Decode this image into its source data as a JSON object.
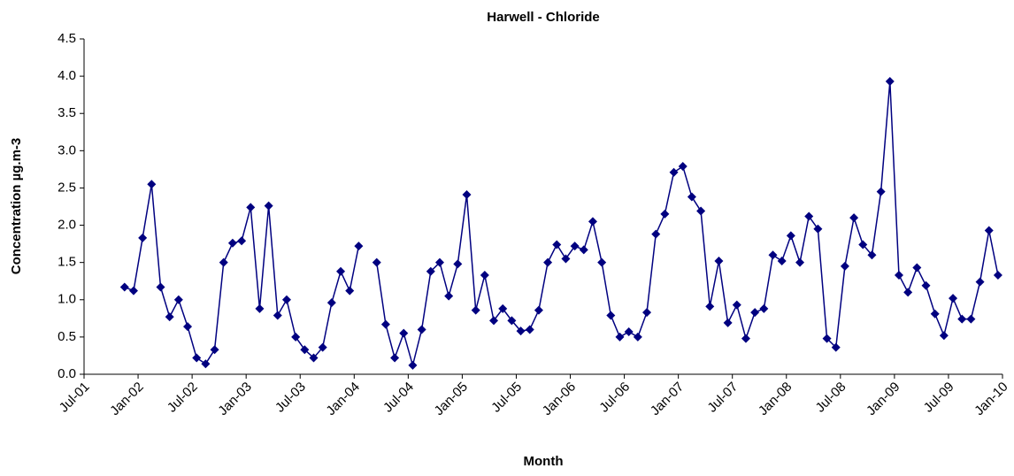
{
  "chart_data": {
    "type": "line",
    "title": "Harwell - Chloride",
    "x_label": "Month",
    "y_label": "Concentration µg.m-3",
    "x": [
      "2001-11",
      "2001-12",
      "2002-01",
      "2002-02",
      "2002-03",
      "2002-04",
      "2002-05",
      "2002-06",
      "2002-07",
      "2002-08",
      "2002-09",
      "2002-10",
      "2002-11",
      "2002-12",
      "2003-01",
      "2003-02",
      "2003-03",
      "2003-04",
      "2003-05",
      "2003-06",
      "2003-07",
      "2003-08",
      "2003-09",
      "2003-10",
      "2003-11",
      "2003-12",
      "2004-01",
      "2004-02",
      "2004-03",
      "2004-04",
      "2004-05",
      "2004-06",
      "2004-07",
      "2004-08",
      "2004-09",
      "2004-10",
      "2004-11",
      "2004-12",
      "2005-01",
      "2005-02",
      "2005-03",
      "2005-04",
      "2005-05",
      "2005-06",
      "2005-07",
      "2005-08",
      "2005-09",
      "2005-10",
      "2005-11",
      "2005-12",
      "2006-01",
      "2006-02",
      "2006-03",
      "2006-04",
      "2006-05",
      "2006-06",
      "2006-07",
      "2006-08",
      "2006-09",
      "2006-10",
      "2006-11",
      "2006-12",
      "2007-01",
      "2007-02",
      "2007-03",
      "2007-04",
      "2007-05",
      "2007-06",
      "2007-07",
      "2007-08",
      "2007-09",
      "2007-10",
      "2007-11",
      "2007-12",
      "2008-01",
      "2008-02",
      "2008-03",
      "2008-04",
      "2008-05",
      "2008-06",
      "2008-07",
      "2008-08",
      "2008-09",
      "2008-10",
      "2008-11",
      "2008-12",
      "2009-01",
      "2009-02",
      "2009-03",
      "2009-04",
      "2009-05",
      "2009-06",
      "2009-07",
      "2009-08",
      "2009-09",
      "2009-10",
      "2009-11",
      "2009-12"
    ],
    "series": [
      {
        "color": "#000080",
        "values": [
          1.17,
          1.12,
          1.83,
          2.55,
          1.17,
          0.77,
          1.0,
          0.64,
          0.22,
          0.14,
          0.33,
          1.5,
          1.76,
          1.79,
          2.24,
          0.88,
          2.26,
          0.79,
          1.0,
          0.5,
          0.33,
          0.22,
          0.36,
          0.96,
          1.38,
          1.12,
          1.72,
          null,
          1.5,
          0.67,
          0.22,
          0.55,
          0.12,
          0.6,
          1.38,
          1.5,
          1.05,
          1.48,
          2.41,
          0.86,
          1.33,
          0.72,
          0.88,
          0.72,
          0.58,
          0.6,
          0.86,
          1.5,
          1.74,
          1.55,
          1.72,
          1.67,
          2.05,
          1.5,
          0.79,
          0.5,
          0.57,
          0.5,
          0.83,
          1.88,
          2.15,
          2.71,
          2.79,
          2.38,
          2.19,
          0.91,
          1.52,
          0.69,
          0.93,
          0.48,
          0.83,
          0.88,
          1.6,
          1.52,
          1.86,
          1.5,
          2.12,
          1.95,
          0.48,
          0.36,
          1.45,
          2.1,
          1.74,
          1.6,
          2.45,
          3.93,
          1.33,
          1.1,
          1.43,
          1.19,
          0.81,
          0.52,
          1.02,
          0.74,
          0.74,
          1.24,
          1.93,
          1.33
        ]
      }
    ],
    "xlim": [
      "2001-07",
      "2010-01"
    ],
    "xticks": [
      {
        "value": "2001-07",
        "label": "Jul-01"
      },
      {
        "value": "2002-01",
        "label": "Jan-02"
      },
      {
        "value": "2002-07",
        "label": "Jul-02"
      },
      {
        "value": "2003-01",
        "label": "Jan-03"
      },
      {
        "value": "2003-07",
        "label": "Jul-03"
      },
      {
        "value": "2004-01",
        "label": "Jan-04"
      },
      {
        "value": "2004-07",
        "label": "Jul-04"
      },
      {
        "value": "2005-01",
        "label": "Jan-05"
      },
      {
        "value": "2005-07",
        "label": "Jul-05"
      },
      {
        "value": "2006-01",
        "label": "Jan-06"
      },
      {
        "value": "2006-07",
        "label": "Jul-06"
      },
      {
        "value": "2007-01",
        "label": "Jan-07"
      },
      {
        "value": "2007-07",
        "label": "Jul-07"
      },
      {
        "value": "2008-01",
        "label": "Jan-08"
      },
      {
        "value": "2008-07",
        "label": "Jul-08"
      },
      {
        "value": "2009-01",
        "label": "Jan-09"
      },
      {
        "value": "2009-07",
        "label": "Jul-09"
      },
      {
        "value": "2010-01",
        "label": "Jan-10"
      }
    ],
    "ylim": [
      0,
      4.5
    ],
    "yticks": [
      {
        "value": 0,
        "label": "0.0"
      },
      {
        "value": 0.5,
        "label": "0.5"
      },
      {
        "value": 1,
        "label": "1.0"
      },
      {
        "value": 1.5,
        "label": "1.5"
      },
      {
        "value": 2,
        "label": "2.0"
      },
      {
        "value": 2.5,
        "label": "2.5"
      },
      {
        "value": 3,
        "label": "3.0"
      },
      {
        "value": 3.5,
        "label": "3.5"
      },
      {
        "value": 4,
        "label": "4.0"
      },
      {
        "value": 4.5,
        "label": "4.5"
      }
    ],
    "grid": false
  }
}
